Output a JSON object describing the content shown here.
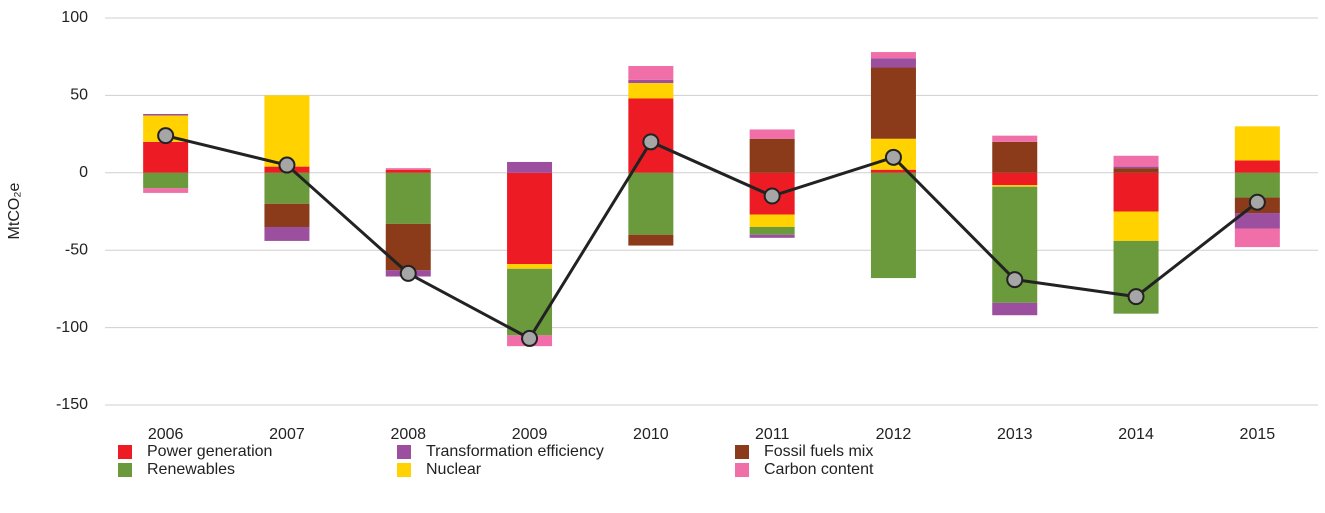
{
  "chart_data": {
    "type": "bar",
    "y_label": "MtCO₂e",
    "categories": [
      "2006",
      "2007",
      "2008",
      "2009",
      "2010",
      "2011",
      "2012",
      "2013",
      "2014",
      "2015"
    ],
    "series": [
      {
        "name": "Power generation",
        "color": "#ed1c24",
        "values": [
          20,
          4,
          2,
          -59,
          48,
          -27,
          2,
          -8,
          -25,
          8
        ]
      },
      {
        "name": "Nuclear",
        "color": "#ffd200",
        "values": [
          17,
          46,
          0,
          -3,
          10,
          -8,
          20,
          -1,
          -19,
          22
        ]
      },
      {
        "name": "Renewables",
        "color": "#6a9a3c",
        "values": [
          -10,
          -20,
          -33,
          -43,
          -40,
          -5,
          -68,
          -75,
          -47,
          -16
        ]
      },
      {
        "name": "Fossil fuels mix",
        "color": "#8b3a1a",
        "values": [
          0,
          -15,
          -30,
          0,
          -7,
          22,
          46,
          20,
          3,
          -10
        ]
      },
      {
        "name": "Transformation efficiency",
        "color": "#9b4f9e",
        "values": [
          1,
          -9,
          -4,
          7,
          2,
          -2,
          6,
          -8,
          1,
          -10
        ]
      },
      {
        "name": "Carbon content",
        "color": "#f06fa8",
        "values": [
          -3,
          0,
          1,
          -7,
          9,
          6,
          4,
          4,
          7,
          -12
        ]
      }
    ],
    "total": [
      24,
      5,
      -65,
      -107,
      20,
      -15,
      10,
      -69,
      -80,
      -19
    ],
    "ylim": [
      -150,
      100
    ],
    "yticks": [
      -150,
      -100,
      -50,
      0,
      50,
      100
    ],
    "grid": true
  }
}
